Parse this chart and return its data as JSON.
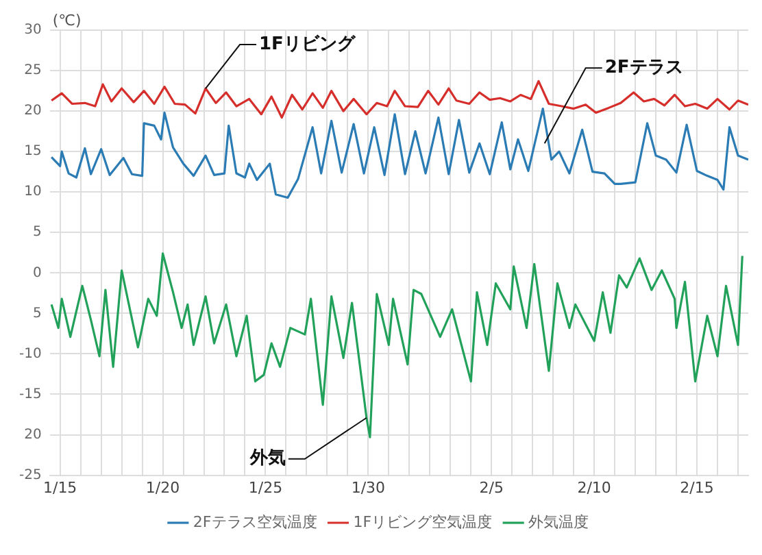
{
  "chart_data": {
    "type": "line",
    "ylabel": "(℃)",
    "legend": "bottom",
    "grid": true,
    "marker": "none",
    "line_style": "solid",
    "xlim": [
      "--01-14T12:00",
      "--02-17T12:00"
    ],
    "xticks": [
      {
        "value": "--01-15",
        "label": "1/15"
      },
      {
        "value": "--01-16",
        "label": null
      },
      {
        "value": "--01-17",
        "label": null
      },
      {
        "value": "--01-18",
        "label": null
      },
      {
        "value": "--01-19",
        "label": null
      },
      {
        "value": "--01-20",
        "label": "1/20"
      },
      {
        "value": "--01-21",
        "label": null
      },
      {
        "value": "--01-22",
        "label": null
      },
      {
        "value": "--01-23",
        "label": null
      },
      {
        "value": "--01-24",
        "label": null
      },
      {
        "value": "--01-25",
        "label": "1/25"
      },
      {
        "value": "--01-26",
        "label": null
      },
      {
        "value": "--01-27",
        "label": null
      },
      {
        "value": "--01-28",
        "label": null
      },
      {
        "value": "--01-29",
        "label": null
      },
      {
        "value": "--01-30",
        "label": "1/30"
      },
      {
        "value": "--01-31",
        "label": null
      },
      {
        "value": "--02-01",
        "label": null
      },
      {
        "value": "--02-02",
        "label": null
      },
      {
        "value": "--02-03",
        "label": null
      },
      {
        "value": "--02-04",
        "label": null
      },
      {
        "value": "--02-05",
        "label": "2/5"
      },
      {
        "value": "--02-06",
        "label": null
      },
      {
        "value": "--02-07",
        "label": null
      },
      {
        "value": "--02-08",
        "label": null
      },
      {
        "value": "--02-09",
        "label": null
      },
      {
        "value": "--02-10",
        "label": "2/10"
      },
      {
        "value": "--02-11",
        "label": null
      },
      {
        "value": "--02-12",
        "label": null
      },
      {
        "value": "--02-13",
        "label": null
      },
      {
        "value": "--02-14",
        "label": null
      },
      {
        "value": "--02-15",
        "label": "2/15"
      },
      {
        "value": "--02-16",
        "label": null
      },
      {
        "value": "--02-17",
        "label": null
      }
    ],
    "ylim": [
      -25,
      30
    ],
    "yticks": [
      {
        "value": -25,
        "label": "-25"
      },
      {
        "value": -20,
        "label": "20"
      },
      {
        "value": -15,
        "label": "-15"
      },
      {
        "value": -10,
        "label": "-10"
      },
      {
        "value": -5,
        "label": "5"
      },
      0,
      5,
      10,
      15,
      20,
      25,
      30
    ],
    "annotations": [
      {
        "text": "1Fリビング",
        "x": "--01-22T02:00",
        "y": 22.8
      },
      {
        "text": "2Fテラス",
        "x": "--02-07T14:00",
        "y": 16
      },
      {
        "text": "外気",
        "x": "--01-29T22:00",
        "y": -17.9
      }
    ],
    "series": [
      {
        "name": "2Fテラス空気温度",
        "color": "#2b7bb4",
        "x": [
          "--01-14T14:00",
          "--01-15T00:00",
          "--01-15T02:00",
          "--01-15T10:00",
          "--01-15T19:00",
          "--01-16T05:00",
          "--01-16T12:00",
          "--01-17T00:00",
          "--01-17T10:00",
          "--01-18T02:00",
          "--01-18T12:00",
          "--01-19T00:00",
          "--01-19T02:00",
          "--01-19T14:00",
          "--01-19T22:00",
          "--01-20T02:00",
          "--01-20T12:00",
          "--01-21T00:00",
          "--01-21T12:00",
          "--01-22T02:00",
          "--01-22T12:00",
          "--01-23T00:00",
          "--01-23T05:00",
          "--01-23T14:00",
          "--01-24T00:00",
          "--01-24T05:00",
          "--01-24T14:00",
          "--01-25T05:00",
          "--01-25T12:00",
          "--01-26T02:00",
          "--01-26T14:00",
          "--01-27T07:00",
          "--01-27T17:00",
          "--01-28T05:00",
          "--01-28T17:00",
          "--01-29T07:00",
          "--01-29T19:00",
          "--01-30T07:00",
          "--01-30T19:00",
          "--01-31T07:00",
          "--01-31T19:00",
          "--02-01T07:00",
          "--02-01T19:00",
          "--02-02T10:00",
          "--02-02T22:00",
          "--02-03T10:00",
          "--02-03T22:00",
          "--02-04T10:00",
          "--02-04T22:00",
          "--02-05T12:00",
          "--02-05T22:00",
          "--02-06T07:00",
          "--02-06T19:00",
          "--02-07T12:00",
          "--02-07T22:00",
          "--02-08T07:00",
          "--02-08T19:00",
          "--02-09T10:00",
          "--02-09T22:00",
          "--02-10T12:00",
          "--02-11T00:00",
          "--02-11T07:00",
          "--02-12T00:00",
          "--02-12T14:00",
          "--02-13T00:00",
          "--02-13T12:00",
          "--02-14T00:00",
          "--02-14T12:00",
          "--02-15T00:00",
          "--02-15T12:00",
          "--02-16T00:00",
          "--02-16T07:00",
          "--02-16T14:00",
          "--02-17T00:00",
          "--02-17T12:00"
        ],
        "values": [
          14.3,
          13.2,
          15,
          12.3,
          11.8,
          15.4,
          12.2,
          15.3,
          12.1,
          14.2,
          12.2,
          12,
          18.5,
          18.2,
          16.5,
          19.8,
          15.5,
          13.5,
          12,
          14.5,
          12.1,
          12.3,
          18.2,
          12.3,
          11.8,
          13.5,
          11.5,
          13.5,
          9.7,
          9.3,
          11.6,
          18,
          12.3,
          18.8,
          12.4,
          18.4,
          12.3,
          18,
          12.1,
          19.6,
          12.2,
          17.5,
          12.3,
          19.2,
          12.2,
          18.9,
          12.4,
          16,
          12.2,
          18.6,
          12.8,
          16.5,
          12.6,
          20.3,
          14,
          15,
          12.3,
          17.7,
          12.5,
          12.3,
          11,
          11,
          11.2,
          18.5,
          14.5,
          14,
          12.4,
          18.3,
          12.6,
          12,
          11.5,
          10.3,
          18,
          14.5,
          14
        ]
      },
      {
        "name": "1Fリビング空気温度",
        "color": "#d62f2b",
        "x": [
          "--01-14T14:00",
          "--01-15T02:00",
          "--01-15T14:00",
          "--01-16T05:00",
          "--01-16T17:00",
          "--01-17T02:00",
          "--01-17T12:00",
          "--01-18T00:00",
          "--01-18T14:00",
          "--01-19T02:00",
          "--01-19T14:00",
          "--01-20T02:00",
          "--01-20T14:00",
          "--01-21T02:00",
          "--01-21T14:00",
          "--01-22T02:00",
          "--01-22T14:00",
          "--01-23T02:00",
          "--01-23T14:00",
          "--01-24T05:00",
          "--01-24T19:00",
          "--01-25T07:00",
          "--01-25T19:00",
          "--01-26T07:00",
          "--01-26T19:00",
          "--01-27T07:00",
          "--01-27T19:00",
          "--01-28T05:00",
          "--01-28T19:00",
          "--01-29T07:00",
          "--01-29T22:00",
          "--01-30T10:00",
          "--01-30T22:00",
          "--01-31T07:00",
          "--01-31T19:00",
          "--02-01T10:00",
          "--02-01T22:00",
          "--02-02T10:00",
          "--02-02T22:00",
          "--02-03T07:00",
          "--02-03T22:00",
          "--02-04T10:00",
          "--02-04T22:00",
          "--02-05T10:00",
          "--02-05T22:00",
          "--02-06T10:00",
          "--02-06T22:00",
          "--02-07T07:00",
          "--02-07T19:00",
          "--02-08T10:00",
          "--02-09T00:00",
          "--02-09T14:00",
          "--02-10T02:00",
          "--02-10T17:00",
          "--02-11T07:00",
          "--02-11T22:00",
          "--02-12T10:00",
          "--02-12T22:00",
          "--02-13T10:00",
          "--02-13T22:00",
          "--02-14T10:00",
          "--02-14T22:00",
          "--02-15T12:00",
          "--02-16T00:00",
          "--02-16T14:00",
          "--02-17T00:00",
          "--02-17T12:00"
        ],
        "values": [
          21.3,
          22.2,
          20.9,
          21,
          20.6,
          23.3,
          21.2,
          22.8,
          21.1,
          22.5,
          20.9,
          23,
          20.9,
          20.8,
          19.7,
          22.8,
          21,
          22.3,
          20.6,
          21.5,
          19.6,
          21.8,
          19.2,
          22,
          20.2,
          22.2,
          20.4,
          22.5,
          20,
          21.5,
          19.6,
          21,
          20.6,
          22.5,
          20.6,
          20.5,
          22.5,
          20.8,
          22.8,
          21.3,
          20.9,
          22.3,
          21.4,
          21.6,
          21.2,
          22,
          21.5,
          23.7,
          20.9,
          20.6,
          20.3,
          20.8,
          19.8,
          20.4,
          21,
          22.3,
          21.2,
          21.5,
          20.7,
          22,
          20.6,
          20.9,
          20.3,
          21.5,
          20.2,
          21.3,
          20.8
        ]
      },
      {
        "name": "外気温度",
        "color": "#22a15a",
        "x": [
          "--01-14T14:00",
          "--01-14T22:00",
          "--01-15T02:00",
          "--01-15T12:00",
          "--01-16T02:00",
          "--01-16T12:00",
          "--01-16T22:00",
          "--01-17T05:00",
          "--01-17T14:00",
          "--01-18T00:00",
          "--01-18T10:00",
          "--01-18T19:00",
          "--01-19T07:00",
          "--01-19T17:00",
          "--01-20T00:00",
          "--01-20T12:00",
          "--01-20T22:00",
          "--01-21T05:00",
          "--01-21T12:00",
          "--01-22T02:00",
          "--01-22T12:00",
          "--01-23T02:00",
          "--01-23T14:00",
          "--01-24T02:00",
          "--01-24T12:00",
          "--01-24T22:00",
          "--01-25T07:00",
          "--01-25T17:00",
          "--01-26T05:00",
          "--01-26T22:00",
          "--01-27T05:00",
          "--01-27T19:00",
          "--01-28T05:00",
          "--01-28T19:00",
          "--01-29T05:00",
          "--01-29T22:00",
          "--01-30T02:00",
          "--01-30T10:00",
          "--01-31T00:00",
          "--01-31T05:00",
          "--01-31T22:00",
          "--02-01T05:00",
          "--02-01T14:00",
          "--02-02T12:00",
          "--02-03T02:00",
          "--02-04T00:00",
          "--02-04T07:00",
          "--02-04T19:00",
          "--02-05T05:00",
          "--02-05T22:00",
          "--02-06T02:00",
          "--02-06T17:00",
          "--02-07T02:00",
          "--02-07T19:00",
          "--02-08T05:00",
          "--02-08T19:00",
          "--02-09T02:00",
          "--02-10T00:00",
          "--02-10T10:00",
          "--02-10T19:00",
          "--02-11T05:00",
          "--02-11T14:00",
          "--02-12T05:00",
          "--02-12T19:00",
          "--02-13T07:00",
          "--02-13T22:00",
          "--02-14T00:00",
          "--02-14T10:00",
          "--02-14T22:00",
          "--02-15T12:00",
          "--02-16T00:00",
          "--02-16T10:00",
          "--02-17T00:00",
          "--02-17T05:00"
        ],
        "values": [
          -3.9,
          -6.8,
          -3.2,
          -7.9,
          -1.6,
          -5.8,
          -10.3,
          -2.1,
          -11.6,
          0.3,
          -4.7,
          -9.2,
          -3.2,
          -5.3,
          2.4,
          -2.4,
          -6.8,
          -3.9,
          -8.9,
          -2.9,
          -8.7,
          -3.9,
          -10.3,
          -5.3,
          -13.4,
          -12.6,
          -8.7,
          -11.6,
          -6.8,
          -7.6,
          -3.2,
          -16.3,
          -2.9,
          -10.5,
          -3.7,
          -17.9,
          -20.3,
          -2.6,
          -8.9,
          -3.2,
          -11.3,
          -2.1,
          -2.6,
          -7.9,
          -4.5,
          -13.4,
          -2.4,
          -8.9,
          -1.3,
          -4.5,
          0.8,
          -6.8,
          1.1,
          -12.1,
          -1.3,
          -6.8,
          -3.9,
          -8.4,
          -2.4,
          -7.4,
          -0.3,
          -1.8,
          1.8,
          -2.1,
          0.3,
          -3.2,
          -6.8,
          -1.1,
          -13.4,
          -5.3,
          -10.3,
          -1.6,
          -8.9,
          2.1
        ]
      }
    ]
  }
}
